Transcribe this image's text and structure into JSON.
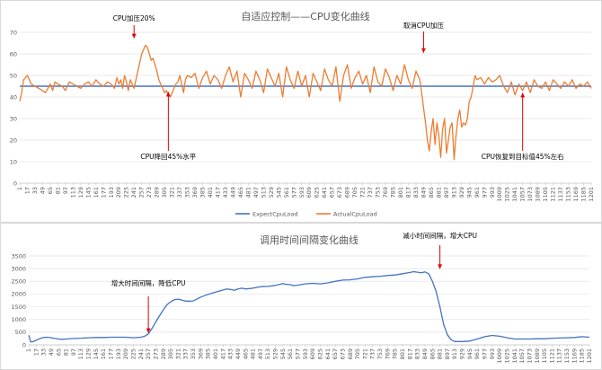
{
  "chart_data": [
    {
      "type": "line",
      "title": "自适应控制——CPU变化曲线",
      "xlabel": "",
      "ylabel": "",
      "ylim": [
        0,
        70
      ],
      "yticks": [
        0,
        10,
        20,
        30,
        40,
        50,
        60,
        70
      ],
      "xlim": [
        1,
        1201
      ],
      "x_tick_labels": [
        "1",
        "17",
        "33",
        "49",
        "65",
        "81",
        "97",
        "113",
        "129",
        "145",
        "161",
        "177",
        "193",
        "209",
        "225",
        "241",
        "257",
        "273",
        "289",
        "305",
        "321",
        "337",
        "353",
        "369",
        "385",
        "401",
        "417",
        "433",
        "449",
        "465",
        "481",
        "497",
        "513",
        "529",
        "545",
        "561",
        "577",
        "593",
        "609",
        "625",
        "641",
        "657",
        "673",
        "689",
        "705",
        "721",
        "737",
        "753",
        "769",
        "785",
        "801",
        "817",
        "833",
        "849",
        "865",
        "881",
        "897",
        "913",
        "929",
        "945",
        "961",
        "977",
        "993",
        "1009",
        "1025",
        "1041",
        "1057",
        "1073",
        "1089",
        "1105",
        "1121",
        "1137",
        "1153",
        "1169",
        "1185",
        "1201"
      ],
      "grid": true,
      "legend": "bottom",
      "colors": {
        "ExpectCpuLoad": "#4472c4",
        "ActualCpuLoad": "#ed7d31"
      },
      "series": [
        {
          "name": "ExpectCpuLoad",
          "x": [
            1,
            1201
          ],
          "y": [
            45,
            45
          ]
        },
        {
          "name": "ActualCpuLoad",
          "x": [
            1,
            5,
            9,
            13,
            17,
            21,
            25,
            33,
            41,
            49,
            55,
            60,
            65,
            70,
            75,
            81,
            90,
            97,
            105,
            113,
            121,
            129,
            137,
            145,
            153,
            161,
            169,
            177,
            185,
            193,
            200,
            205,
            209,
            213,
            217,
            221,
            225,
            229,
            233,
            237,
            241,
            245,
            249,
            253,
            257,
            261,
            265,
            269,
            273,
            277,
            281,
            285,
            289,
            293,
            297,
            301,
            305,
            309,
            313,
            317,
            321,
            325,
            329,
            333,
            337,
            341,
            345,
            349,
            353,
            361,
            369,
            377,
            385,
            393,
            401,
            409,
            417,
            425,
            433,
            441,
            449,
            457,
            465,
            473,
            481,
            489,
            497,
            505,
            513,
            521,
            529,
            537,
            545,
            553,
            561,
            569,
            577,
            585,
            593,
            601,
            609,
            617,
            625,
            633,
            641,
            649,
            657,
            665,
            673,
            681,
            689,
            697,
            705,
            713,
            721,
            729,
            737,
            745,
            753,
            761,
            769,
            777,
            785,
            793,
            801,
            809,
            817,
            825,
            833,
            841,
            845,
            849,
            853,
            857,
            861,
            865,
            869,
            873,
            877,
            881,
            885,
            889,
            893,
            897,
            901,
            905,
            909,
            913,
            917,
            921,
            925,
            929,
            933,
            937,
            941,
            945,
            949,
            953,
            957,
            961,
            969,
            977,
            985,
            993,
            1001,
            1009,
            1017,
            1025,
            1033,
            1041,
            1049,
            1057,
            1065,
            1073,
            1081,
            1089,
            1097,
            1105,
            1113,
            1121,
            1129,
            1137,
            1145,
            1153,
            1161,
            1169,
            1177,
            1185,
            1193,
            1201
          ],
          "y": [
            38,
            42,
            48,
            49,
            50,
            48,
            46,
            45,
            44,
            43,
            42,
            44,
            46,
            43,
            47,
            46,
            45,
            43,
            47,
            46,
            45,
            44,
            46,
            47,
            45,
            48,
            46,
            45,
            47,
            46,
            44,
            49,
            46,
            48,
            44,
            50,
            47,
            43,
            48,
            46,
            44,
            48,
            52,
            56,
            60,
            62,
            64,
            63,
            60,
            57,
            58,
            55,
            52,
            48,
            46,
            44,
            42,
            43,
            41,
            40,
            42,
            44,
            46,
            47,
            50,
            46,
            42,
            48,
            50,
            49,
            51,
            44,
            49,
            52,
            46,
            50,
            48,
            44,
            50,
            54,
            47,
            52,
            40,
            51,
            48,
            44,
            52,
            48,
            42,
            53,
            49,
            45,
            51,
            40,
            54,
            48,
            44,
            52,
            45,
            50,
            40,
            51,
            47,
            43,
            53,
            48,
            45,
            54,
            38,
            50,
            55,
            44,
            49,
            52,
            46,
            50,
            42,
            54,
            47,
            45,
            53,
            49,
            43,
            50,
            46,
            55,
            48,
            44,
            52,
            48,
            42,
            35,
            28,
            20,
            15,
            24,
            30,
            18,
            28,
            22,
            12,
            25,
            30,
            14,
            20,
            26,
            28,
            11,
            22,
            30,
            34,
            26,
            28,
            27,
            30,
            38,
            40,
            45,
            50,
            48,
            49,
            46,
            49,
            47,
            48,
            50,
            45,
            42,
            47,
            41,
            46,
            43,
            47,
            42,
            48,
            45,
            44,
            47,
            43,
            48,
            46,
            44,
            47,
            45,
            48,
            44,
            46,
            45,
            47,
            44
          ]
        }
      ],
      "annotations": [
        {
          "text": "CPU加压20%",
          "x": 241,
          "y": 66
        },
        {
          "text": "CPU降回45%水平",
          "x": 313,
          "y": 44
        },
        {
          "text": "取消CPU加压",
          "x": 849,
          "y": 58
        },
        {
          "text": "CPU恢复到目标值45%左右",
          "x": 1057,
          "y": 44
        }
      ]
    },
    {
      "type": "line",
      "title": "调用时间间隔变化曲线",
      "xlabel": "",
      "ylabel": "",
      "ylim": [
        0,
        3500
      ],
      "yticks": [
        0,
        500,
        1000,
        1500,
        2000,
        2500,
        3000,
        3500
      ],
      "xlim": [
        1,
        1201
      ],
      "x_tick_labels": [
        "1",
        "17",
        "33",
        "49",
        "65",
        "81",
        "97",
        "113",
        "129",
        "145",
        "161",
        "177",
        "193",
        "209",
        "225",
        "241",
        "257",
        "273",
        "289",
        "305",
        "321",
        "337",
        "353",
        "369",
        "385",
        "401",
        "417",
        "433",
        "449",
        "465",
        "481",
        "497",
        "513",
        "529",
        "545",
        "561",
        "577",
        "593",
        "609",
        "625",
        "641",
        "657",
        "673",
        "689",
        "705",
        "721",
        "737",
        "753",
        "769",
        "785",
        "801",
        "817",
        "833",
        "849",
        "865",
        "881",
        "897",
        "913",
        "929",
        "945",
        "961",
        "977",
        "993",
        "1009",
        "1025",
        "1041",
        "1057",
        "1073",
        "1089",
        "1105",
        "1121",
        "1137",
        "1153",
        "1169",
        "1185",
        "1201"
      ],
      "grid": true,
      "colors": {
        "interval": "#4472c4"
      },
      "series": [
        {
          "name": "",
          "x": [
            1,
            5,
            9,
            17,
            25,
            33,
            41,
            49,
            57,
            65,
            73,
            81,
            97,
            113,
            129,
            145,
            161,
            177,
            193,
            209,
            225,
            241,
            249,
            257,
            265,
            273,
            281,
            289,
            297,
            305,
            313,
            321,
            329,
            337,
            345,
            353,
            361,
            369,
            385,
            401,
            417,
            425,
            433,
            441,
            449,
            457,
            465,
            481,
            497,
            513,
            529,
            545,
            553,
            561,
            569,
            577,
            593,
            609,
            625,
            641,
            657,
            673,
            689,
            705,
            721,
            737,
            753,
            769,
            785,
            801,
            817,
            825,
            833,
            841,
            849,
            857,
            865,
            873,
            881,
            889,
            897,
            905,
            913,
            921,
            929,
            945,
            961,
            977,
            993,
            1009,
            1025,
            1041,
            1049,
            1057,
            1073,
            1089,
            1105,
            1121,
            1137,
            1153,
            1169,
            1185,
            1201
          ],
          "y": [
            380,
            120,
            120,
            180,
            250,
            290,
            300,
            280,
            250,
            230,
            220,
            230,
            250,
            260,
            280,
            290,
            290,
            300,
            300,
            300,
            280,
            300,
            340,
            430,
            650,
            900,
            1150,
            1380,
            1580,
            1700,
            1780,
            1800,
            1760,
            1720,
            1720,
            1730,
            1800,
            1880,
            1990,
            2080,
            2160,
            2200,
            2180,
            2150,
            2200,
            2230,
            2200,
            2230,
            2290,
            2300,
            2340,
            2410,
            2380,
            2370,
            2330,
            2350,
            2400,
            2420,
            2400,
            2440,
            2500,
            2550,
            2560,
            2600,
            2660,
            2680,
            2700,
            2730,
            2750,
            2800,
            2850,
            2880,
            2860,
            2840,
            2870,
            2800,
            2500,
            2100,
            1500,
            800,
            400,
            200,
            130,
            130,
            130,
            150,
            230,
            320,
            370,
            340,
            280,
            230,
            230,
            230,
            230,
            240,
            240,
            260,
            270,
            280,
            290,
            320,
            300
          ]
        }
      ],
      "annotations": [
        {
          "text": "增大时间间隔，降低CPU",
          "x": 257,
          "y": 330
        },
        {
          "text": "减小时间间隔，增大CPU",
          "x": 881,
          "y": 2850
        }
      ]
    }
  ]
}
